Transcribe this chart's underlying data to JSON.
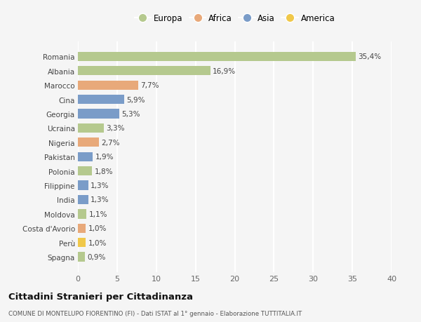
{
  "countries": [
    "Romania",
    "Albania",
    "Marocco",
    "Cina",
    "Georgia",
    "Ucraina",
    "Nigeria",
    "Pakistan",
    "Polonia",
    "Filippine",
    "India",
    "Moldova",
    "Costa d'Avorio",
    "Perù",
    "Spagna"
  ],
  "values": [
    35.4,
    16.9,
    7.7,
    5.9,
    5.3,
    3.3,
    2.7,
    1.9,
    1.8,
    1.3,
    1.3,
    1.1,
    1.0,
    1.0,
    0.9
  ],
  "labels": [
    "35,4%",
    "16,9%",
    "7,7%",
    "5,9%",
    "5,3%",
    "3,3%",
    "2,7%",
    "1,9%",
    "1,8%",
    "1,3%",
    "1,3%",
    "1,1%",
    "1,0%",
    "1,0%",
    "0,9%"
  ],
  "continents": [
    "Europa",
    "Europa",
    "Africa",
    "Asia",
    "Asia",
    "Europa",
    "Africa",
    "Asia",
    "Europa",
    "Asia",
    "Asia",
    "Europa",
    "Africa",
    "America",
    "Europa"
  ],
  "continent_colors": {
    "Europa": "#b5c98e",
    "Africa": "#e8a97a",
    "Asia": "#7a9cc8",
    "America": "#f0c84a"
  },
  "legend_order": [
    "Europa",
    "Africa",
    "Asia",
    "America"
  ],
  "title": "Cittadini Stranieri per Cittadinanza",
  "subtitle": "COMUNE DI MONTELUPO FIORENTINO (FI) - Dati ISTAT al 1° gennaio - Elaborazione TUTTITALIA.IT",
  "xlim": [
    0,
    40
  ],
  "xticks": [
    0,
    5,
    10,
    15,
    20,
    25,
    30,
    35,
    40
  ],
  "background_color": "#f5f5f5",
  "grid_color": "#ffffff",
  "bar_height": 0.65
}
